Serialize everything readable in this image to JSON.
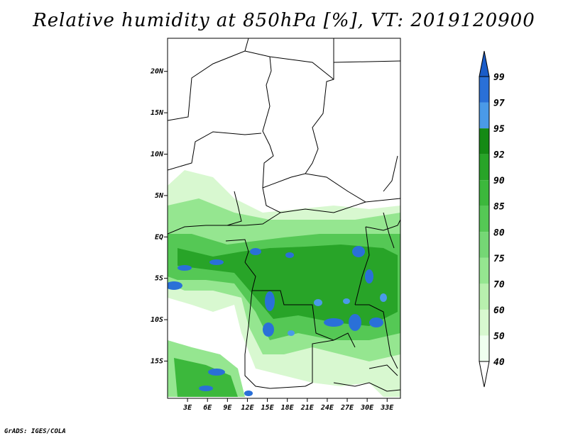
{
  "title": "Relative humidity at 850hPa [%], VT: 2019120900",
  "credit": "GrADS: IGES/COLA",
  "map": {
    "lon_range": [
      0,
      35
    ],
    "lat_range": [
      -19.5,
      24
    ],
    "lat_ticks": [
      {
        "value": 20,
        "label": "20N"
      },
      {
        "value": 15,
        "label": "15N"
      },
      {
        "value": 10,
        "label": "10N"
      },
      {
        "value": 5,
        "label": "5N"
      },
      {
        "value": 0,
        "label": "EQ"
      },
      {
        "value": -5,
        "label": "5S"
      },
      {
        "value": -10,
        "label": "10S"
      },
      {
        "value": -15,
        "label": "15S"
      }
    ],
    "lon_ticks": [
      {
        "value": 3,
        "label": "3E"
      },
      {
        "value": 6,
        "label": "6E"
      },
      {
        "value": 9,
        "label": "9E"
      },
      {
        "value": 12,
        "label": "12E"
      },
      {
        "value": 15,
        "label": "15E"
      },
      {
        "value": 18,
        "label": "18E"
      },
      {
        "value": 21,
        "label": "21E"
      },
      {
        "value": 24,
        "label": "24E"
      },
      {
        "value": 27,
        "label": "27E"
      },
      {
        "value": 30,
        "label": "30E"
      },
      {
        "value": 33,
        "label": "33E"
      }
    ],
    "land_color": "#ffffff",
    "border_color": "#000000"
  },
  "colorbar": {
    "levels": [
      {
        "label": "40",
        "color": "#f0fff0"
      },
      {
        "label": "50",
        "color": "#d8f8d0"
      },
      {
        "label": "60",
        "color": "#b8f0ae"
      },
      {
        "label": "70",
        "color": "#95e690"
      },
      {
        "label": "75",
        "color": "#75d775"
      },
      {
        "label": "80",
        "color": "#55c855"
      },
      {
        "label": "85",
        "color": "#3cb83c"
      },
      {
        "label": "90",
        "color": "#28a428"
      },
      {
        "label": "92",
        "color": "#148a14"
      },
      {
        "label": "95",
        "color": "#4a9ae8"
      },
      {
        "label": "97",
        "color": "#2a70d8"
      },
      {
        "label": "99",
        "color": "#1a5cc8"
      }
    ],
    "below_color": "#ffffff",
    "above_color": "#1a5cc8"
  }
}
